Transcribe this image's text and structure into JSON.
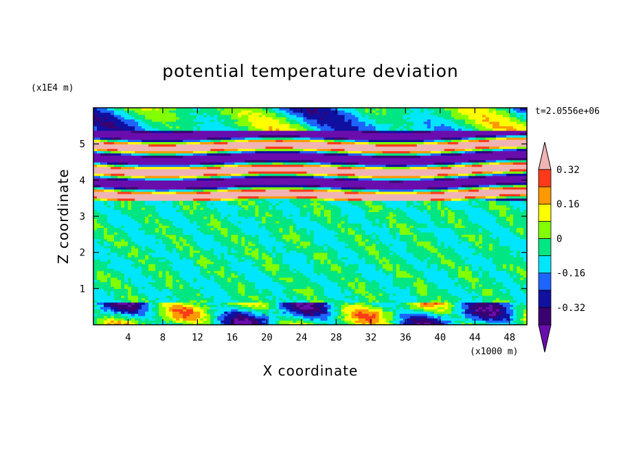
{
  "chart_data": {
    "type": "heatmap",
    "title": "potential temperature deviation",
    "xlabel": "X coordinate",
    "ylabel": "Z coordinate",
    "x_unit": "(x1000 m)",
    "y_unit": "(x1E4 m)",
    "time_label": "t=2.0556e+06",
    "xlim": [
      0,
      50
    ],
    "ylim": [
      0,
      6
    ],
    "x_ticks": [
      4,
      8,
      12,
      16,
      20,
      24,
      28,
      32,
      36,
      40,
      44,
      48
    ],
    "y_ticks": [
      1,
      2,
      3,
      4,
      5
    ],
    "colorbar": {
      "levels": [
        -0.4,
        -0.32,
        -0.24,
        -0.16,
        -0.08,
        0,
        0.08,
        0.16,
        0.24,
        0.32,
        0.4
      ],
      "tick_labels": [
        "0.32",
        "0.16",
        "0",
        "-0.16",
        "-0.32"
      ],
      "tick_values": [
        0.32,
        0.16,
        0,
        -0.16,
        -0.32
      ],
      "colors": [
        "#6a0dad",
        "#3a0070",
        "#1010a0",
        "#1e64ff",
        "#00e6ff",
        "#00e682",
        "#82ff00",
        "#ffff00",
        "#ff9900",
        "#ff3a1a",
        "#f0b4b4"
      ],
      "extend": "both"
    },
    "regions": [
      {
        "z_range": [
          5.35,
          6.0
        ],
        "description": "mostly near-zero with blue and red patches"
      },
      {
        "z_range": [
          3.45,
          5.35
        ],
        "description": "alternating strong positive (pink) and negative (purple) horizontal layers"
      },
      {
        "z_range": [
          0.6,
          3.45
        ],
        "description": "near-zero noisy field (green)"
      },
      {
        "z_range": [
          0.0,
          0.6
        ],
        "description": "mixed positive and negative patches near the surface"
      }
    ]
  }
}
